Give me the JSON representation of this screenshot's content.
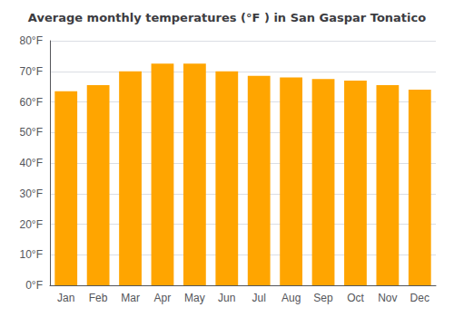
{
  "chart_data": {
    "type": "bar",
    "title": "Average monthly temperatures (°F ) in San Gaspar Tonatico",
    "categories": [
      "Jan",
      "Feb",
      "Mar",
      "Apr",
      "May",
      "Jun",
      "Jul",
      "Aug",
      "Sep",
      "Oct",
      "Nov",
      "Dec"
    ],
    "values": [
      63.5,
      65.5,
      70.0,
      72.5,
      72.5,
      70.0,
      68.5,
      68.0,
      67.5,
      67.0,
      65.5,
      64.0
    ],
    "color": "#FFA500",
    "ylim": [
      0,
      80
    ],
    "yticks": [
      {
        "value": 0,
        "label": "0°F"
      },
      {
        "value": 10,
        "label": "10°F"
      },
      {
        "value": 20,
        "label": "20°F"
      },
      {
        "value": 30,
        "label": "30°F"
      },
      {
        "value": 40,
        "label": "40°F"
      },
      {
        "value": 50,
        "label": "50°F"
      },
      {
        "value": 60,
        "label": "60°F"
      },
      {
        "value": 70,
        "label": "70°F"
      },
      {
        "value": 80,
        "label": "80°F"
      }
    ],
    "grid": true
  }
}
